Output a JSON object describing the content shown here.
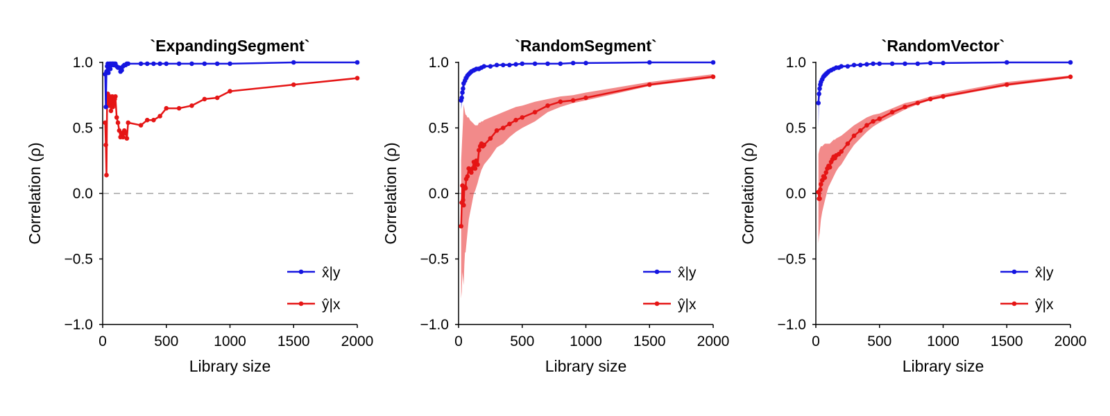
{
  "chart_data": [
    {
      "type": "line",
      "title": "`ExpandingSegment`",
      "xlabel": "Library size",
      "ylabel": "Correlation (ρ)",
      "xlim": [
        0,
        2000
      ],
      "ylim": [
        -1.0,
        1.0
      ],
      "xticks": [
        "0",
        "500",
        "1000",
        "1500",
        "2000"
      ],
      "yticks": [
        "−1.0",
        "−0.5",
        "0.0",
        "0.5",
        "1.0"
      ],
      "reference_line": {
        "y": 0.0,
        "style": "dashed",
        "color": "#bbbbbb"
      },
      "legend": {
        "placement": "bottom-right"
      },
      "series": [
        {
          "name": "x̂|y",
          "color": "#1515e0",
          "x": [
            20,
            25,
            30,
            35,
            40,
            45,
            50,
            55,
            60,
            65,
            70,
            75,
            80,
            85,
            90,
            95,
            100,
            110,
            120,
            130,
            140,
            150,
            160,
            170,
            180,
            190,
            200,
            300,
            350,
            400,
            450,
            500,
            600,
            700,
            800,
            900,
            1000,
            1500,
            2000
          ],
          "y": [
            0.91,
            0.66,
            0.93,
            0.97,
            0.99,
            0.92,
            0.97,
            0.99,
            0.95,
            0.99,
            0.98,
            0.99,
            0.99,
            0.98,
            0.99,
            0.98,
            0.99,
            0.97,
            0.96,
            0.96,
            0.93,
            0.94,
            0.97,
            0.98,
            0.98,
            0.99,
            0.99,
            0.99,
            0.99,
            0.99,
            0.99,
            0.99,
            0.99,
            0.99,
            0.99,
            0.99,
            0.99,
            1.0,
            1.0
          ],
          "band_lower": [],
          "band_upper": []
        },
        {
          "name": "ŷ|x",
          "color": "#e51515",
          "x": [
            20,
            25,
            30,
            35,
            40,
            45,
            50,
            55,
            60,
            65,
            70,
            75,
            80,
            85,
            90,
            95,
            100,
            110,
            120,
            130,
            140,
            150,
            160,
            170,
            180,
            190,
            200,
            300,
            350,
            400,
            450,
            500,
            600,
            700,
            800,
            900,
            1000,
            1500,
            2000
          ],
          "y": [
            0.54,
            0.37,
            0.14,
            0.72,
            0.76,
            0.69,
            0.67,
            0.74,
            0.71,
            0.63,
            0.72,
            0.74,
            0.66,
            0.68,
            0.71,
            0.72,
            0.74,
            0.58,
            0.54,
            0.48,
            0.43,
            0.46,
            0.43,
            0.48,
            0.46,
            0.42,
            0.54,
            0.52,
            0.56,
            0.56,
            0.59,
            0.65,
            0.65,
            0.67,
            0.72,
            0.73,
            0.78,
            0.83,
            0.88
          ],
          "band_lower": [],
          "band_upper": []
        }
      ]
    },
    {
      "type": "line",
      "title": "`RandomSegment`",
      "xlabel": "Library size",
      "ylabel": "Correlation (ρ)",
      "xlim": [
        0,
        2000
      ],
      "ylim": [
        -1.0,
        1.0
      ],
      "xticks": [
        "0",
        "500",
        "1000",
        "1500",
        "2000"
      ],
      "yticks": [
        "−1.0",
        "−0.5",
        "0.0",
        "0.5",
        "1.0"
      ],
      "reference_line": {
        "y": 0.0,
        "style": "dashed",
        "color": "#bbbbbb"
      },
      "legend": {
        "placement": "bottom-right"
      },
      "series": [
        {
          "name": "x̂|y",
          "color": "#1515e0",
          "x": [
            20,
            25,
            30,
            35,
            40,
            50,
            60,
            70,
            80,
            90,
            100,
            120,
            140,
            160,
            180,
            200,
            250,
            300,
            350,
            400,
            450,
            500,
            600,
            700,
            800,
            900,
            1000,
            1500,
            2000
          ],
          "y": [
            0.71,
            0.73,
            0.77,
            0.8,
            0.84,
            0.86,
            0.88,
            0.9,
            0.91,
            0.92,
            0.93,
            0.94,
            0.95,
            0.95,
            0.96,
            0.97,
            0.97,
            0.98,
            0.98,
            0.98,
            0.985,
            0.99,
            0.99,
            0.99,
            0.99,
            0.995,
            0.995,
            1.0,
            1.0
          ],
          "band_lower": [
            0.64,
            0.67,
            0.71,
            0.75,
            0.79,
            0.82,
            0.85,
            0.87,
            0.88,
            0.9,
            0.91,
            0.92,
            0.93,
            0.94,
            0.95,
            0.96,
            0.965,
            0.97,
            0.975,
            0.98,
            0.98,
            0.985,
            0.985,
            0.99,
            0.99,
            0.99,
            0.99,
            0.995,
            1.0
          ],
          "band_upper": [
            0.77,
            0.79,
            0.83,
            0.86,
            0.89,
            0.9,
            0.91,
            0.92,
            0.93,
            0.94,
            0.95,
            0.96,
            0.965,
            0.97,
            0.975,
            0.98,
            0.98,
            0.985,
            0.99,
            0.99,
            0.99,
            0.995,
            0.995,
            0.995,
            0.995,
            1.0,
            1.0,
            1.0,
            1.0
          ]
        },
        {
          "name": "ŷ|x",
          "color": "#e51515",
          "x": [
            20,
            25,
            30,
            35,
            40,
            45,
            50,
            55,
            60,
            70,
            80,
            90,
            100,
            110,
            120,
            130,
            140,
            150,
            160,
            170,
            180,
            190,
            200,
            250,
            300,
            350,
            400,
            450,
            500,
            600,
            700,
            800,
            900,
            1000,
            1500,
            2000
          ],
          "y": [
            -0.25,
            -0.07,
            0.06,
            -0.05,
            -0.09,
            0.04,
            0.05,
            0.04,
            0.11,
            0.13,
            0.19,
            0.17,
            0.16,
            0.19,
            0.24,
            0.19,
            0.25,
            0.22,
            0.33,
            0.36,
            0.38,
            0.36,
            0.37,
            0.42,
            0.48,
            0.5,
            0.53,
            0.56,
            0.58,
            0.62,
            0.67,
            0.7,
            0.71,
            0.73,
            0.83,
            0.89
          ],
          "band_lower": [
            -0.8,
            -0.75,
            -0.6,
            -0.65,
            -0.7,
            -0.55,
            -0.45,
            -0.45,
            -0.4,
            -0.3,
            -0.2,
            -0.15,
            -0.1,
            -0.05,
            0.0,
            0.02,
            0.05,
            0.08,
            0.12,
            0.15,
            0.18,
            0.2,
            0.22,
            0.28,
            0.35,
            0.38,
            0.43,
            0.47,
            0.5,
            0.55,
            0.62,
            0.66,
            0.69,
            0.71,
            0.82,
            0.88
          ],
          "band_upper": [
            0.25,
            0.35,
            0.45,
            0.55,
            0.68,
            0.65,
            0.62,
            0.6,
            0.6,
            0.58,
            0.58,
            0.56,
            0.55,
            0.54,
            0.53,
            0.52,
            0.52,
            0.52,
            0.54,
            0.54,
            0.55,
            0.55,
            0.56,
            0.58,
            0.6,
            0.62,
            0.64,
            0.66,
            0.67,
            0.7,
            0.72,
            0.74,
            0.75,
            0.77,
            0.85,
            0.91
          ]
        }
      ]
    },
    {
      "type": "line",
      "title": "`RandomVector`",
      "xlabel": "Library size",
      "ylabel": "Correlation (ρ)",
      "xlim": [
        0,
        2000
      ],
      "ylim": [
        -1.0,
        1.0
      ],
      "xticks": [
        "0",
        "500",
        "1000",
        "1500",
        "2000"
      ],
      "yticks": [
        "−1.0",
        "−0.5",
        "0.0",
        "0.5",
        "1.0"
      ],
      "reference_line": {
        "y": 0.0,
        "style": "dashed",
        "color": "#bbbbbb"
      },
      "legend": {
        "placement": "bottom-right"
      },
      "series": [
        {
          "name": "x̂|y",
          "color": "#1515e0",
          "x": [
            20,
            25,
            30,
            35,
            40,
            50,
            60,
            70,
            80,
            90,
            100,
            120,
            140,
            160,
            180,
            200,
            250,
            300,
            350,
            400,
            450,
            500,
            600,
            700,
            800,
            900,
            1000,
            1500,
            2000
          ],
          "y": [
            0.69,
            0.76,
            0.8,
            0.83,
            0.85,
            0.87,
            0.89,
            0.9,
            0.91,
            0.92,
            0.93,
            0.94,
            0.95,
            0.96,
            0.96,
            0.97,
            0.97,
            0.98,
            0.98,
            0.985,
            0.99,
            0.99,
            0.99,
            0.99,
            0.99,
            0.995,
            0.995,
            1.0,
            1.0
          ],
          "band_lower": [
            0.5,
            0.65,
            0.72,
            0.77,
            0.8,
            0.83,
            0.86,
            0.88,
            0.89,
            0.9,
            0.91,
            0.93,
            0.94,
            0.95,
            0.955,
            0.96,
            0.965,
            0.97,
            0.975,
            0.98,
            0.985,
            0.985,
            0.985,
            0.99,
            0.99,
            0.99,
            0.99,
            0.995,
            1.0
          ],
          "band_upper": [
            0.82,
            0.85,
            0.87,
            0.88,
            0.89,
            0.91,
            0.92,
            0.93,
            0.935,
            0.94,
            0.95,
            0.96,
            0.965,
            0.97,
            0.975,
            0.98,
            0.98,
            0.985,
            0.99,
            0.99,
            0.995,
            0.995,
            0.995,
            0.995,
            0.995,
            1.0,
            1.0,
            1.0,
            1.0
          ]
        },
        {
          "name": "ŷ|x",
          "color": "#e51515",
          "x": [
            20,
            25,
            30,
            35,
            40,
            50,
            60,
            70,
            80,
            90,
            100,
            110,
            120,
            130,
            140,
            150,
            160,
            180,
            200,
            250,
            300,
            350,
            400,
            450,
            500,
            600,
            700,
            800,
            900,
            1000,
            1500,
            2000
          ],
          "y": [
            0.01,
            -0.04,
            -0.04,
            0.03,
            0.07,
            0.1,
            0.13,
            0.12,
            0.16,
            0.19,
            0.21,
            0.2,
            0.24,
            0.26,
            0.28,
            0.27,
            0.29,
            0.3,
            0.32,
            0.38,
            0.44,
            0.48,
            0.52,
            0.55,
            0.57,
            0.62,
            0.66,
            0.69,
            0.72,
            0.74,
            0.83,
            0.89
          ],
          "band_lower": [
            -0.38,
            -0.33,
            -0.3,
            -0.25,
            -0.2,
            -0.14,
            -0.1,
            -0.06,
            -0.02,
            0.02,
            0.05,
            0.07,
            0.09,
            0.11,
            0.13,
            0.15,
            0.17,
            0.2,
            0.22,
            0.3,
            0.37,
            0.42,
            0.47,
            0.51,
            0.54,
            0.59,
            0.64,
            0.68,
            0.71,
            0.73,
            0.82,
            0.88
          ],
          "band_upper": [
            0.3,
            0.32,
            0.34,
            0.35,
            0.36,
            0.36,
            0.37,
            0.38,
            0.38,
            0.38,
            0.38,
            0.38,
            0.39,
            0.4,
            0.41,
            0.41,
            0.42,
            0.43,
            0.44,
            0.48,
            0.52,
            0.55,
            0.58,
            0.6,
            0.61,
            0.65,
            0.69,
            0.71,
            0.74,
            0.76,
            0.85,
            0.9
          ]
        }
      ]
    }
  ]
}
